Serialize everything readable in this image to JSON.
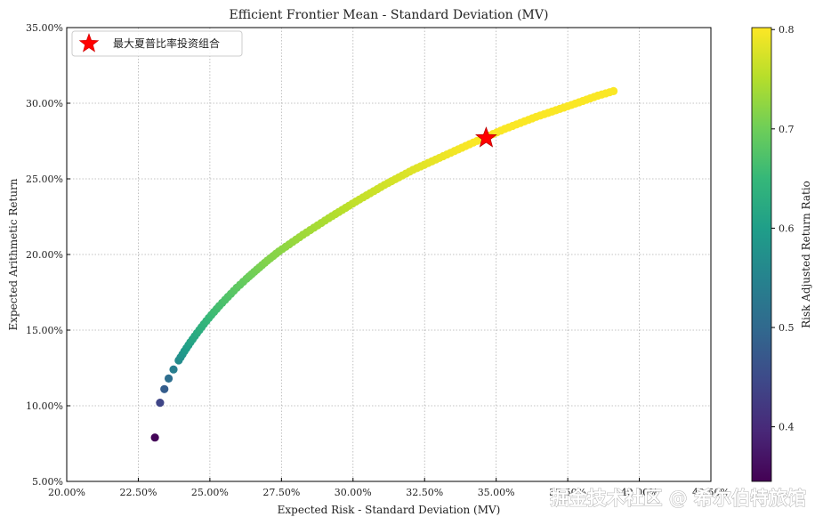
{
  "chart_data": {
    "type": "scatter",
    "title": "Efficient Frontier Mean - Standard Deviation (MV)",
    "xlabel": "Expected Risk - Standard Deviation (MV)",
    "ylabel": "Expected Arithmetic Return",
    "xlim": [
      0.2,
      0.425
    ],
    "ylim": [
      0.05,
      0.35
    ],
    "xticks": [
      0.2,
      0.225,
      0.25,
      0.275,
      0.3,
      0.325,
      0.35,
      0.375,
      0.4,
      0.425
    ],
    "yticks": [
      0.05,
      0.1,
      0.15,
      0.2,
      0.25,
      0.3,
      0.35
    ],
    "x_tick_labels": [
      "20.00%",
      "22.50%",
      "25.00%",
      "27.50%",
      "30.00%",
      "32.50%",
      "35.00%",
      "37.50%",
      "40.00%",
      "42.50%"
    ],
    "y_tick_labels": [
      "5.00%",
      "10.00%",
      "15.00%",
      "20.00%",
      "25.00%",
      "30.00%",
      "35.00%"
    ],
    "grid": true,
    "legend_position": "top-left",
    "series": [
      {
        "name": "",
        "x": [
          0.2308,
          0.2326,
          0.2341,
          0.2356,
          0.2373,
          0.2391,
          0.2411,
          0.2432,
          0.2455,
          0.2479,
          0.2505,
          0.2533,
          0.2563,
          0.2594,
          0.2628,
          0.2664,
          0.2701,
          0.2741,
          0.2825,
          0.2915,
          0.301,
          0.311,
          0.321,
          0.3315,
          0.342,
          0.353,
          0.364,
          0.375,
          0.3855,
          0.391
        ],
        "y": [
          0.079,
          0.102,
          0.111,
          0.118,
          0.124,
          0.13,
          0.136,
          0.142,
          0.148,
          0.154,
          0.16,
          0.166,
          0.172,
          0.178,
          0.184,
          0.19,
          0.196,
          0.202,
          0.213,
          0.224,
          0.235,
          0.246,
          0.256,
          0.265,
          0.274,
          0.283,
          0.291,
          0.298,
          0.305,
          0.308
        ],
        "sharpe": [
          0.35,
          0.44,
          0.48,
          0.51,
          0.54,
          0.565,
          0.59,
          0.61,
          0.625,
          0.64,
          0.655,
          0.665,
          0.675,
          0.685,
          0.695,
          0.705,
          0.715,
          0.72,
          0.735,
          0.745,
          0.76,
          0.77,
          0.78,
          0.79,
          0.8,
          0.8,
          0.8,
          0.8,
          0.8,
          0.8
        ]
      }
    ],
    "max_sharpe_point": {
      "label": "最大夏普比率投资组合",
      "x": 0.3465,
      "y": 0.277
    },
    "colorbar": {
      "label": "Risk Adjusted Return Ratio",
      "range": [
        0.345,
        0.802
      ],
      "ticks": [
        0.4,
        0.5,
        0.6,
        0.7,
        0.8
      ],
      "tick_labels": [
        "0.4",
        "0.5",
        "0.6",
        "0.7",
        "0.8"
      ],
      "colormap": "viridis",
      "colors": [
        "#440154",
        "#482878",
        "#3e4989",
        "#31688e",
        "#26828e",
        "#1f9e89",
        "#35b779",
        "#6ece58",
        "#b5de2b",
        "#fde725"
      ]
    },
    "marker_color": "#ff0000"
  },
  "watermark": "掘金技术社区 @ 希尔伯特旅馆"
}
